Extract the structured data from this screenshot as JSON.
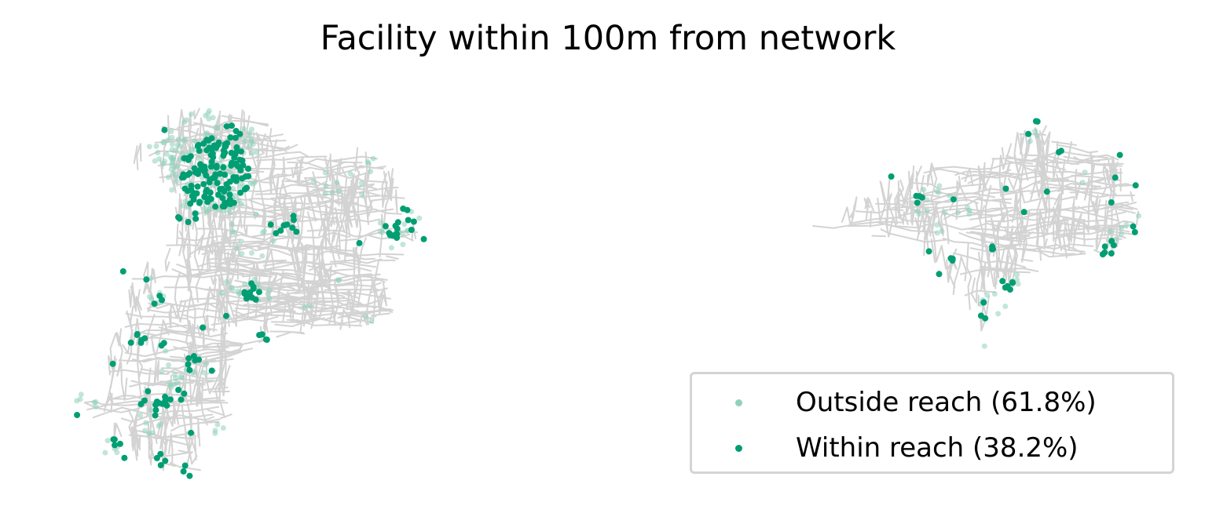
{
  "title": "Facility within 100m from network",
  "colors": {
    "network": "#d3d3d3",
    "outside": "#8fd1b9",
    "within": "#009e73",
    "legend_border": "#d4d4d4"
  },
  "legend": {
    "placement": "bottom-right",
    "items": [
      {
        "label": "Outside reach (61.8%)",
        "category": "outside"
      },
      {
        "label": "Within reach (38.2%)",
        "category": "within"
      }
    ]
  }
}
